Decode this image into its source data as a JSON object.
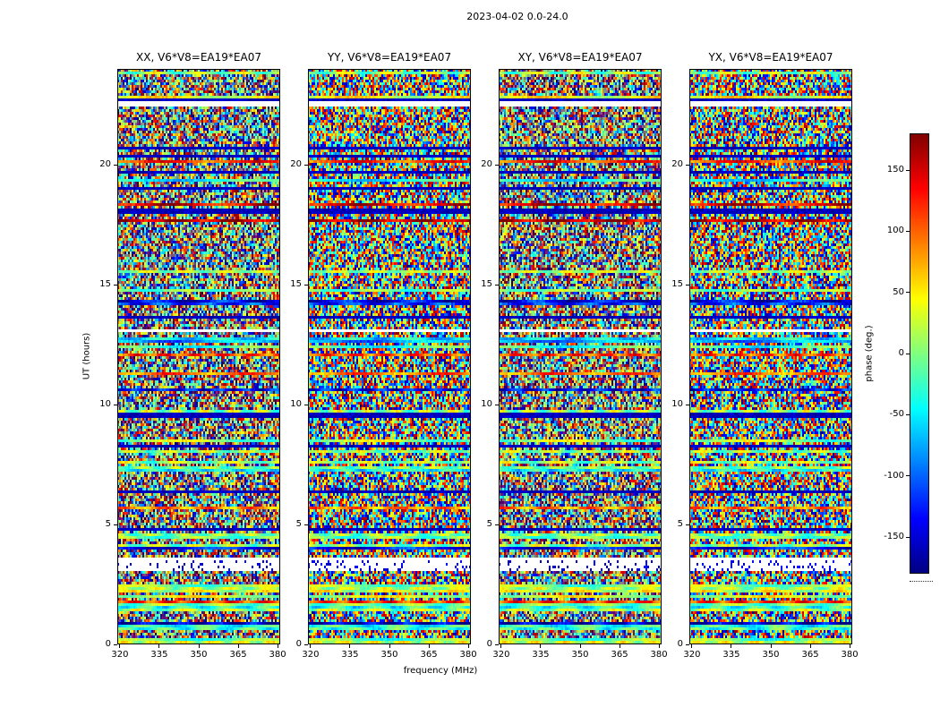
{
  "figure_title": "2023-04-02 0.0-24.0",
  "panels": [
    {
      "title": "XX, V6*V8=EA19*EA07"
    },
    {
      "title": "YY, V6*V8=EA19*EA07"
    },
    {
      "title": "XY, V6*V8=EA19*EA07"
    },
    {
      "title": "YX, V6*V8=EA19*EA07"
    }
  ],
  "x_axis": {
    "label": "frequency (MHz)",
    "ticks": [
      "320",
      "335",
      "350",
      "365",
      "380"
    ]
  },
  "y_axis": {
    "label": "UT (hours)",
    "ticks": [
      "0",
      "5",
      "10",
      "15",
      "20"
    ]
  },
  "colorbar": {
    "label": "phase (deg.)",
    "ticks": [
      "150",
      "100",
      "50",
      "0",
      "-50",
      "-100",
      "-150"
    ]
  },
  "chart_data": {
    "type": "heatmap",
    "title": "2023-04-02 0.0-24.0",
    "panels": [
      "XX, V6*V8=EA19*EA07",
      "YY, V6*V8=EA19*EA07",
      "XY, V6*V8=EA19*EA07",
      "YX, V6*V8=EA19*EA07"
    ],
    "xlabel": "frequency (MHz)",
    "ylabel": "UT (hours)",
    "xlim": [
      319,
      381
    ],
    "ylim": [
      0,
      24
    ],
    "xticks": [
      320,
      335,
      350,
      365,
      380
    ],
    "yticks": [
      0,
      5,
      10,
      15,
      20
    ],
    "colorbar_label": "phase (deg.)",
    "colorbar_ticks": [
      -150,
      -100,
      -50,
      0,
      50,
      100,
      150
    ],
    "value_range_deg": [
      -180,
      180
    ],
    "colormap": "jet",
    "description": "Four correlation-product panels (XX, YY, XY, YX) of visibility phase versus frequency (~320-381 MHz) and UT time (0-24 h) for baseline V6*V8=EA19*EA07; content is dense pseudo-random phase noise with horizontal banding, smooth low-phase bands and flagged (white) time ranges.",
    "flagged_time_gaps_hours": [
      [
        3.05,
        3.66
      ],
      [
        13.0,
        13.14
      ],
      [
        21.38,
        21.46
      ],
      [
        22.4,
        22.62
      ]
    ],
    "dark_phase_bands_hours": [
      [
        9.45,
        9.65
      ],
      [
        17.95,
        18.2
      ]
    ],
    "smooth_bands_hours": [
      [
        0.0,
        0.3
      ],
      [
        0.6,
        0.8
      ],
      [
        1.5,
        1.75
      ],
      [
        2.2,
        2.45
      ],
      [
        4.4,
        4.62
      ]
    ]
  }
}
